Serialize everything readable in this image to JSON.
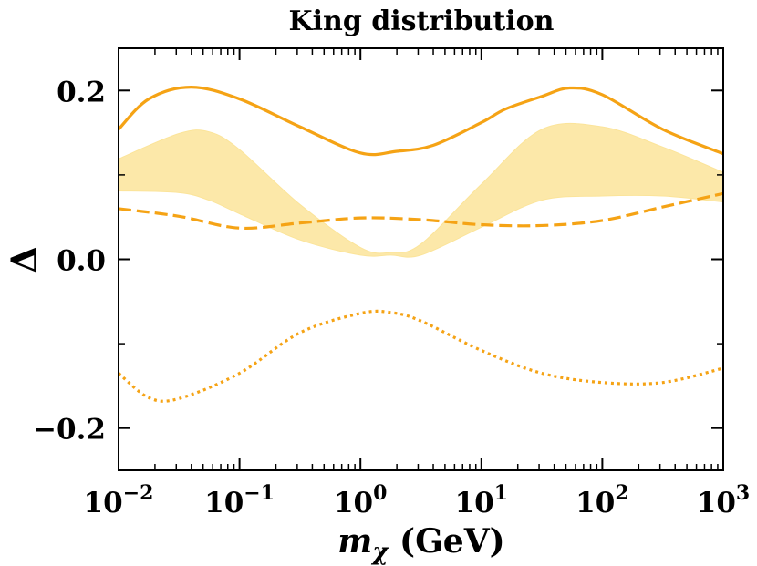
{
  "chart_data": {
    "type": "line",
    "title": "King distribution",
    "xlabel": "mχ (GeV)",
    "ylabel": "Δ",
    "xscale": "log",
    "xlim": [
      0.01,
      1000
    ],
    "ylim": [
      -0.25,
      0.25
    ],
    "xticks": [
      {
        "value": 0.01,
        "label": "10−2"
      },
      {
        "value": 0.1,
        "label": "10−1"
      },
      {
        "value": 1,
        "label": "100"
      },
      {
        "value": 10,
        "label": "101"
      },
      {
        "value": 100,
        "label": "102"
      },
      {
        "value": 1000,
        "label": "103"
      }
    ],
    "yticks": [
      {
        "value": -0.2,
        "label": "−0.2"
      },
      {
        "value": 0,
        "label": "0.0"
      },
      0.2
    ],
    "yminor": [
      -0.1,
      0.1
    ],
    "band": {
      "color": "#fbe49a",
      "x": [
        0.01,
        0.0316,
        0.0562,
        0.1,
        0.316,
        1,
        1.78,
        3.16,
        10,
        31.6,
        100,
        316,
        1000
      ],
      "upper": [
        0.119,
        0.149,
        0.151,
        0.13,
        0.065,
        0.014,
        0.008,
        0.018,
        0.089,
        0.154,
        0.157,
        0.133,
        0.103
      ],
      "lower": [
        0.081,
        0.079,
        0.07,
        0.054,
        0.023,
        0.005,
        0.005,
        0.005,
        0.038,
        0.07,
        0.075,
        0.075,
        0.068
      ]
    },
    "series": [
      {
        "style": "solid",
        "color": "#f5a315",
        "x": [
          0.01,
          0.0178,
          0.0398,
          0.1,
          0.316,
          1,
          2,
          3.98,
          10,
          15.8,
          31.6,
          53.7,
          100,
          316,
          1000
        ],
        "values": [
          0.154,
          0.19,
          0.204,
          0.19,
          0.157,
          0.126,
          0.128,
          0.135,
          0.162,
          0.178,
          0.193,
          0.203,
          0.195,
          0.154,
          0.125
        ]
      },
      {
        "style": "dashed",
        "color": "#f5a315",
        "x": [
          0.01,
          0.0316,
          0.1,
          0.316,
          1,
          3.16,
          10,
          31.6,
          100,
          316,
          1000
        ],
        "values": [
          0.06,
          0.051,
          0.037,
          0.043,
          0.049,
          0.047,
          0.041,
          0.04,
          0.046,
          0.062,
          0.078
        ]
      },
      {
        "style": "dotted",
        "color": "#f5a315",
        "x": [
          0.01,
          0.0178,
          0.0316,
          0.1,
          0.316,
          1,
          1.78,
          3.16,
          10,
          31.6,
          100,
          316,
          1000
        ],
        "values": [
          -0.135,
          -0.164,
          -0.165,
          -0.135,
          -0.087,
          -0.064,
          -0.063,
          -0.073,
          -0.108,
          -0.135,
          -0.146,
          -0.146,
          -0.129
        ]
      }
    ]
  }
}
